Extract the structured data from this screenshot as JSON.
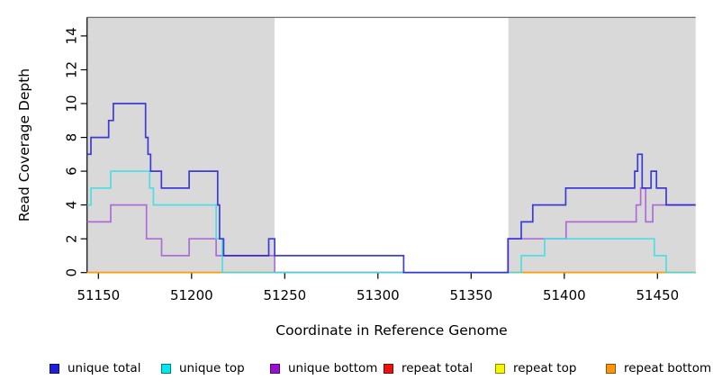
{
  "chart_data": {
    "type": "line",
    "subtype": "step-coverage-plot",
    "title": "",
    "xlabel": "Coordinate in Reference Genome",
    "ylabel": "Read Coverage Depth",
    "xlim": [
      51143.9,
      51470.5
    ],
    "ylim": [
      0,
      15.1
    ],
    "x_ticks": [
      51150,
      51200,
      51250,
      51300,
      51350,
      51400,
      51450
    ],
    "y_ticks": [
      0,
      2,
      4,
      6,
      8,
      10,
      12,
      14
    ],
    "grid": false,
    "background_color": "#ffffff",
    "shaded_regions": [
      {
        "x0": 51143.9,
        "x1": 51244.5,
        "color": "#d9d9d9",
        "meaning": "masked-region"
      },
      {
        "x0": 51370.0,
        "x1": 51470.5,
        "color": "#d9d9d9",
        "meaning": "masked-region"
      }
    ],
    "series": [
      {
        "name": "repeat total",
        "color": "#e02020",
        "points": [
          [
            51143.9,
            0
          ],
          [
            51470.5,
            0
          ]
        ]
      },
      {
        "name": "repeat top",
        "color": "#f2f200",
        "points": [
          [
            51143.9,
            0
          ],
          [
            51470.5,
            0
          ]
        ]
      },
      {
        "name": "repeat bottom",
        "color": "#ff9408",
        "points": [
          [
            51143.9,
            0
          ],
          [
            51470.5,
            0
          ]
        ]
      },
      {
        "name": "unique bottom",
        "color": "#a95cd6",
        "points": [
          [
            51143.9,
            3
          ],
          [
            51156.6,
            4
          ],
          [
            51175.8,
            2
          ],
          [
            51183.9,
            1
          ],
          [
            51198.7,
            2
          ],
          [
            51213.2,
            1
          ],
          [
            51244.6,
            0
          ],
          [
            51369.8,
            2
          ],
          [
            51401.0,
            3
          ],
          [
            51438.6,
            4
          ],
          [
            51441.0,
            5
          ],
          [
            51443.7,
            3
          ],
          [
            51447.5,
            4
          ],
          [
            51470.5,
            4
          ]
        ]
      },
      {
        "name": "unique top",
        "color": "#3edde6",
        "points": [
          [
            51143.9,
            4
          ],
          [
            51146.0,
            5
          ],
          [
            51156.6,
            6
          ],
          [
            51177.5,
            5
          ],
          [
            51179.5,
            4
          ],
          [
            51213.2,
            2
          ],
          [
            51216.5,
            0
          ],
          [
            51376.9,
            1
          ],
          [
            51389.5,
            2
          ],
          [
            51448.3,
            1
          ],
          [
            51454.7,
            0
          ],
          [
            51470.5,
            0
          ]
        ]
      },
      {
        "name": "unique total",
        "color": "#2626d4",
        "points": [
          [
            51143.9,
            7
          ],
          [
            51146.0,
            8
          ],
          [
            51155.5,
            9
          ],
          [
            51158.0,
            10
          ],
          [
            51175.3,
            8
          ],
          [
            51176.6,
            7
          ],
          [
            51178.0,
            6
          ],
          [
            51183.8,
            5
          ],
          [
            51198.7,
            6
          ],
          [
            51214.0,
            4
          ],
          [
            51215.0,
            2
          ],
          [
            51217.2,
            1
          ],
          [
            51241.4,
            2
          ],
          [
            51244.6,
            1
          ],
          [
            51313.8,
            0
          ],
          [
            51369.8,
            2
          ],
          [
            51376.9,
            3
          ],
          [
            51383.1,
            4
          ],
          [
            51400.8,
            5
          ],
          [
            51437.8,
            6
          ],
          [
            51439.4,
            7
          ],
          [
            51441.8,
            5
          ],
          [
            51446.6,
            6
          ],
          [
            51449.5,
            5
          ],
          [
            51454.7,
            4
          ],
          [
            51470.5,
            4
          ]
        ]
      }
    ],
    "legend": [
      {
        "label": "unique total",
        "color": "#1f1fd6"
      },
      {
        "label": "unique top",
        "color": "#00e8ee"
      },
      {
        "label": "unique bottom",
        "color": "#9910d0"
      },
      {
        "label": "repeat total",
        "color": "#ee1010"
      },
      {
        "label": "repeat top",
        "color": "#f6f600"
      },
      {
        "label": "repeat bottom",
        "color": "#ff9408"
      }
    ],
    "legend_position": "bottom"
  }
}
